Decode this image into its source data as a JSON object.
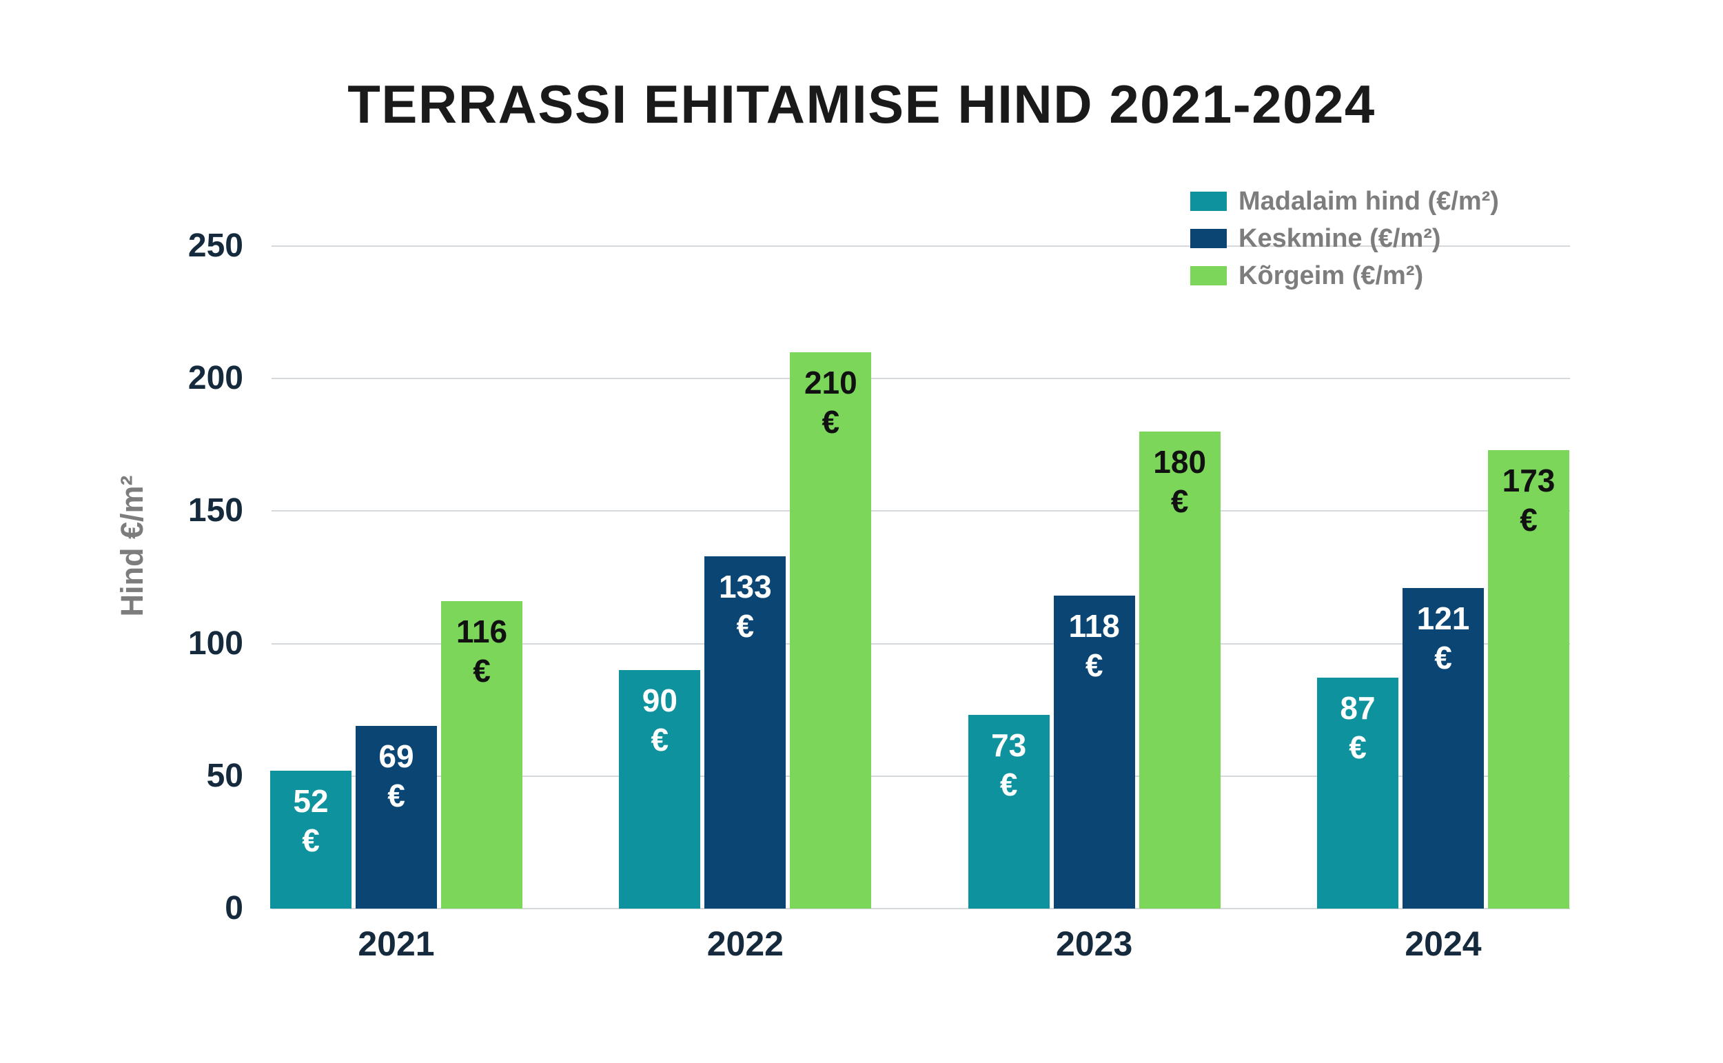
{
  "chart_data": {
    "type": "bar",
    "title": "TERRASSI EHITAMISE HIND 2021-2024",
    "categories": [
      "2021",
      "2022",
      "2023",
      "2024"
    ],
    "series": [
      {
        "name": "Madalaim hind (€/m²)",
        "color": "#0E929D",
        "label_color": "#FFFFFF",
        "values": [
          52,
          90,
          73,
          87
        ]
      },
      {
        "name": "Keskmine (€/m²)",
        "color": "#0B4574",
        "label_color": "#FFFFFF",
        "values": [
          69,
          133,
          118,
          121
        ]
      },
      {
        "name": "Kõrgeim (€/m²)",
        "color": "#7BD65A",
        "label_color": "#111111",
        "values": [
          116,
          210,
          180,
          173
        ]
      }
    ],
    "value_suffix": "€",
    "xlabel": "",
    "ylabel": "Hind €/m²",
    "ylim": [
      0,
      250
    ],
    "yticks": [
      0,
      50,
      100,
      150,
      200,
      250
    ],
    "grid": "horizontal",
    "legend_position": "top-right"
  },
  "style_colors": {
    "background": "#FFFFFF",
    "title_text": "#1A1A1A",
    "axis_text": "#152B3D",
    "muted_text": "#7D7D7D",
    "grid": "#D6D9DB"
  }
}
